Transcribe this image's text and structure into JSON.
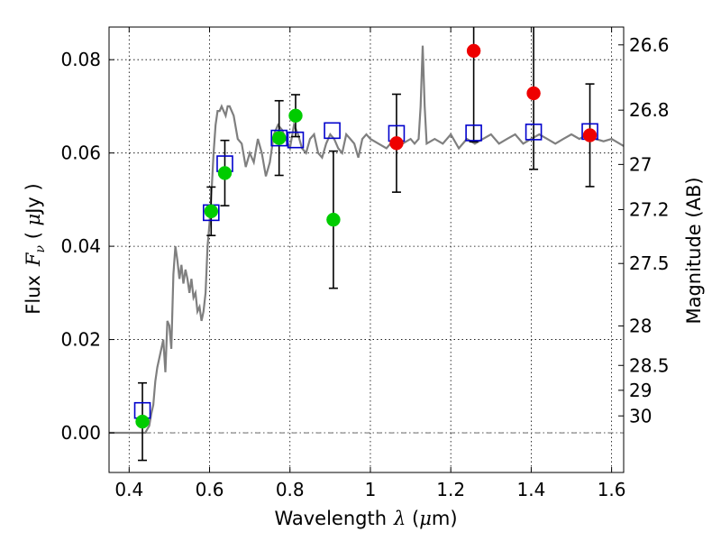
{
  "chart_data": {
    "type": "scatter",
    "title": "",
    "xlabel": "Wavelength",
    "xlabel_math": "λ",
    "xlabel_unit_open": " (",
    "xlabel_unit_mu": "μ",
    "xlabel_unit_close": "m)",
    "ylabel": "Flux",
    "ylabel_math_F": "F",
    "ylabel_math_sub": "ν",
    "ylabel_unit_open": " ( ",
    "ylabel_unit_mu": "μ",
    "ylabel_unit_close": "Jy )",
    "y2label": "Magnitude (AB)",
    "xlim": [
      0.35,
      1.63
    ],
    "ylim": [
      -0.0085,
      0.087
    ],
    "grid": true,
    "x_ticks": [
      0.4,
      0.6,
      0.8,
      1.0,
      1.2,
      1.4,
      1.6
    ],
    "x_tick_labels": [
      "0.4",
      "0.6",
      "0.8",
      "1",
      "1.2",
      "1.4",
      "1.6"
    ],
    "y_ticks": [
      0.0,
      0.02,
      0.04,
      0.06,
      0.08
    ],
    "y_tick_labels": [
      "0.00",
      "0.02",
      "0.04",
      "0.06",
      "0.08"
    ],
    "mag_ticks": [
      26.6,
      26.8,
      27.0,
      27.2,
      27.5,
      28.0,
      28.5,
      29.0,
      30.0
    ],
    "mag_tick_labels": [
      "26.6",
      "26.8",
      "27",
      "27.2",
      "27.5",
      "28",
      "28.5",
      "29",
      "30"
    ],
    "colors": {
      "sed": "#7f7f7f",
      "model": "#0000cc",
      "green": "#00cc00",
      "red": "#ee0000",
      "errorbar": "#000000",
      "zero_line": "#555555"
    },
    "sed_curve": {
      "x": [
        0.35,
        0.4,
        0.42,
        0.43,
        0.44,
        0.45,
        0.455,
        0.46,
        0.465,
        0.47,
        0.48,
        0.485,
        0.49,
        0.495,
        0.5,
        0.505,
        0.51,
        0.515,
        0.52,
        0.525,
        0.53,
        0.535,
        0.54,
        0.545,
        0.55,
        0.555,
        0.56,
        0.565,
        0.57,
        0.575,
        0.58,
        0.585,
        0.59,
        0.595,
        0.6,
        0.605,
        0.61,
        0.615,
        0.62,
        0.625,
        0.63,
        0.64,
        0.645,
        0.65,
        0.66,
        0.67,
        0.68,
        0.69,
        0.7,
        0.71,
        0.72,
        0.73,
        0.74,
        0.75,
        0.76,
        0.77,
        0.78,
        0.79,
        0.8,
        0.81,
        0.82,
        0.83,
        0.84,
        0.85,
        0.86,
        0.87,
        0.88,
        0.89,
        0.9,
        0.91,
        0.92,
        0.93,
        0.94,
        0.95,
        0.96,
        0.97,
        0.98,
        0.99,
        1.0,
        1.02,
        1.04,
        1.06,
        1.08,
        1.1,
        1.11,
        1.12,
        1.125,
        1.13,
        1.135,
        1.14,
        1.16,
        1.18,
        1.2,
        1.22,
        1.24,
        1.26,
        1.28,
        1.3,
        1.32,
        1.34,
        1.36,
        1.38,
        1.4,
        1.42,
        1.44,
        1.46,
        1.48,
        1.5,
        1.52,
        1.54,
        1.56,
        1.58,
        1.6,
        1.62,
        1.63
      ],
      "y": [
        0.0,
        0.0,
        0.0,
        0.0,
        0.0,
        0.0015,
        0.004,
        0.006,
        0.011,
        0.014,
        0.018,
        0.02,
        0.013,
        0.024,
        0.023,
        0.018,
        0.034,
        0.04,
        0.037,
        0.033,
        0.036,
        0.032,
        0.035,
        0.033,
        0.03,
        0.033,
        0.029,
        0.03,
        0.026,
        0.027,
        0.024,
        0.026,
        0.03,
        0.04,
        0.045,
        0.052,
        0.06,
        0.066,
        0.069,
        0.069,
        0.07,
        0.068,
        0.07,
        0.07,
        0.068,
        0.063,
        0.062,
        0.057,
        0.06,
        0.058,
        0.063,
        0.06,
        0.055,
        0.058,
        0.064,
        0.066,
        0.065,
        0.063,
        0.061,
        0.066,
        0.064,
        0.061,
        0.06,
        0.063,
        0.064,
        0.06,
        0.059,
        0.062,
        0.064,
        0.063,
        0.061,
        0.06,
        0.064,
        0.063,
        0.062,
        0.059,
        0.063,
        0.064,
        0.063,
        0.062,
        0.061,
        0.063,
        0.062,
        0.063,
        0.062,
        0.063,
        0.07,
        0.083,
        0.07,
        0.062,
        0.063,
        0.062,
        0.064,
        0.061,
        0.063,
        0.062,
        0.063,
        0.064,
        0.062,
        0.063,
        0.064,
        0.062,
        0.063,
        0.064,
        0.063,
        0.062,
        0.063,
        0.064,
        0.063,
        0.064,
        0.063,
        0.0625,
        0.063,
        0.062,
        0.0615
      ]
    },
    "model_points": {
      "x": [
        0.433,
        0.604,
        0.638,
        0.773,
        0.814,
        0.905,
        1.065,
        1.257,
        1.406,
        1.546
      ],
      "y": [
        0.0048,
        0.0472,
        0.0577,
        0.0632,
        0.0628,
        0.0648,
        0.0642,
        0.0643,
        0.0645,
        0.0646
      ]
    },
    "series": [
      {
        "color": "green",
        "x": [
          0.433,
          0.604,
          0.638,
          0.773,
          0.814,
          0.908
        ],
        "y": [
          0.0024,
          0.0475,
          0.0557,
          0.0632,
          0.068,
          0.0457
        ],
        "yerr": [
          0.0083,
          0.0052,
          0.007,
          0.008,
          0.0045,
          0.0147
        ]
      },
      {
        "color": "red",
        "x": [
          1.065,
          1.257,
          1.406,
          1.546
        ],
        "y": [
          0.0621,
          0.0819,
          0.0728,
          0.0638
        ],
        "yerr": [
          0.0105,
          0.0195,
          0.0163,
          0.011
        ]
      }
    ]
  }
}
